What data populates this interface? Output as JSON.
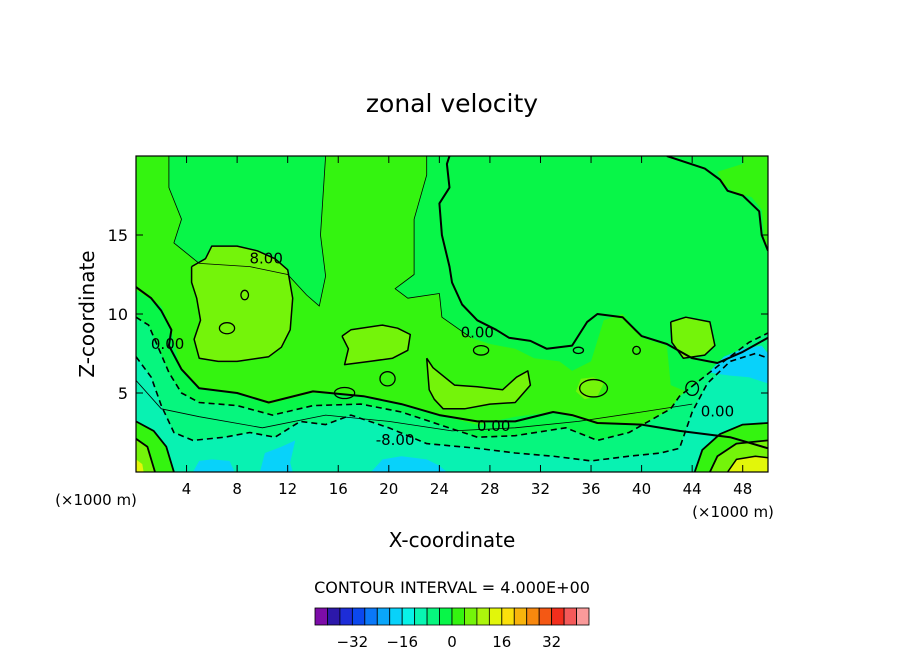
{
  "chart_data": {
    "type": "heatmap",
    "title": "zonal velocity",
    "xlabel": "X-coordinate",
    "ylabel": "Z-coordinate",
    "x_unit": "(×1000 m)",
    "xlim": [
      0,
      50
    ],
    "ylim": [
      0,
      20
    ],
    "x_ticks": [
      4,
      8,
      12,
      16,
      20,
      24,
      28,
      32,
      36,
      40,
      44,
      48
    ],
    "y_ticks": [
      5,
      10,
      15
    ],
    "contour_interval_text": "CONTOUR INTERVAL = 4.000E+00",
    "contour_labels": [
      {
        "text": "8.00",
        "x": 10.3,
        "z": 13.2
      },
      {
        "text": "0.00",
        "x": 2.5,
        "z": 7.8
      },
      {
        "text": "0.00",
        "x": 27.0,
        "z": 8.5
      },
      {
        "text": "0.00",
        "x": 28.3,
        "z": 2.6
      },
      {
        "text": "0.00",
        "x": 46.0,
        "z": 3.5
      },
      {
        "text": "-8.00",
        "x": 20.5,
        "z": 1.7
      }
    ],
    "colorbar": {
      "colors": [
        "#7c0ca8",
        "#2c18aa",
        "#1d2dd8",
        "#0b48ee",
        "#0a78f8",
        "#0aa6fa",
        "#08d2fa",
        "#08f2e8",
        "#08f6b2",
        "#06f67e",
        "#08f648",
        "#34f410",
        "#74f40a",
        "#acf60c",
        "#e2f60a",
        "#fae00c",
        "#f8b40c",
        "#f8880e",
        "#f45814",
        "#f22e1c",
        "#f45a5a",
        "#fa9a9a"
      ],
      "tick_labels": [
        "-32",
        "-16",
        "0",
        "16",
        "32"
      ],
      "tick_values": [
        -32,
        -16,
        0,
        16,
        32
      ],
      "range": [
        -44,
        44
      ]
    },
    "regions": [
      {
        "level": 0,
        "fill": "#08f648",
        "desc": "baseline 0 to 4"
      },
      {
        "level": 4,
        "fill": "#34f410",
        "desc": "upper-left and mid band"
      },
      {
        "level": 8,
        "fill": "#74f40a",
        "desc": "blob near x=8, z=10"
      },
      {
        "level": -4,
        "fill": "#06f67e",
        "desc": "lower band"
      },
      {
        "level": -8,
        "fill": "#08f2b2",
        "desc": "near surface"
      },
      {
        "level": -12,
        "fill": "#08d2fa",
        "desc": "surface cores x=6, 11, 21"
      },
      {
        "level": 12,
        "fill": "#e2f60a",
        "desc": "surface corner x=49"
      }
    ]
  }
}
